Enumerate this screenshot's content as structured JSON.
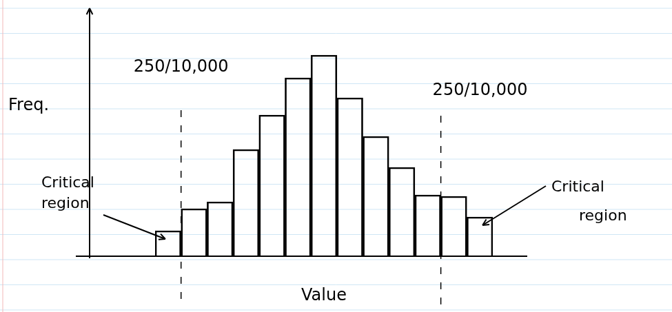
{
  "chart_data": {
    "type": "bar",
    "categories": [
      null,
      null,
      null,
      null,
      null,
      null,
      null,
      null,
      null,
      null,
      null,
      null,
      null
    ],
    "values": [
      37,
      69,
      79,
      155,
      205,
      259,
      292,
      230,
      174,
      129,
      89,
      87,
      57
    ],
    "color": "#000000",
    "x_label": "Value",
    "y_label": "Freq.",
    "ylim": [
      0,
      350
    ],
    "tick_labels": false,
    "grid": false,
    "critical_regions": [
      {
        "bins": [
          0
        ],
        "count_label": "250/10,000",
        "label": "Critical region"
      },
      {
        "bins": [
          11,
          12
        ],
        "count_label": "250/10,000",
        "label": "Critical region"
      }
    ]
  }
}
